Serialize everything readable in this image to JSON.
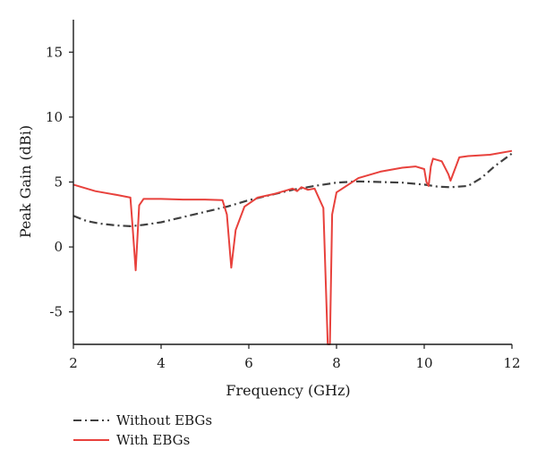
{
  "chart_data": {
    "type": "line",
    "xlabel": "Frequency (GHz)",
    "ylabel": "Peak Gain (dBi)",
    "xlim": [
      2,
      12
    ],
    "ylim": [
      -7.5,
      17.5
    ],
    "xticks": [
      2,
      4,
      6,
      8,
      10,
      12
    ],
    "yticks": [
      -5,
      0,
      5,
      10,
      15
    ],
    "grid": false,
    "legend_position": "bottom-left, below plot",
    "series": [
      {
        "name": "Without EBGs",
        "color": "#404040",
        "style": "dash-dot",
        "x": [
          2,
          2.3,
          2.6,
          3,
          3.3,
          3.6,
          4,
          4.5,
          5,
          5.5,
          6,
          6.5,
          7,
          7.5,
          8,
          8.5,
          9,
          9.5,
          10,
          10.3,
          10.6,
          11,
          11.3,
          11.6,
          12
        ],
        "y": [
          2.4,
          2.0,
          1.8,
          1.65,
          1.6,
          1.7,
          1.9,
          2.3,
          2.7,
          3.1,
          3.6,
          4.0,
          4.4,
          4.7,
          4.95,
          5.05,
          5.0,
          4.95,
          4.8,
          4.65,
          4.6,
          4.7,
          5.3,
          6.2,
          7.2
        ]
      },
      {
        "name": "With EBGs",
        "color": "#e8413c",
        "style": "solid",
        "x": [
          2,
          2.5,
          3,
          3.3,
          3.35,
          3.42,
          3.5,
          3.6,
          4,
          4.5,
          5,
          5.4,
          5.5,
          5.6,
          5.7,
          5.9,
          6.2,
          6.6,
          7,
          7.1,
          7.2,
          7.35,
          7.5,
          7.7,
          7.8,
          7.85,
          7.9,
          8,
          8.5,
          9,
          9.5,
          9.8,
          10,
          10.05,
          10.1,
          10.15,
          10.2,
          10.4,
          10.55,
          10.6,
          10.7,
          10.8,
          11,
          11.5,
          12
        ],
        "y": [
          4.8,
          4.3,
          4.0,
          3.8,
          1.5,
          -1.8,
          3.2,
          3.7,
          3.7,
          3.65,
          3.65,
          3.6,
          2.5,
          -1.6,
          1.3,
          3.1,
          3.8,
          4.1,
          4.5,
          4.3,
          4.6,
          4.4,
          4.5,
          3.0,
          -7.5,
          -7.5,
          2.5,
          4.2,
          5.3,
          5.8,
          6.1,
          6.2,
          6.0,
          5.0,
          4.7,
          6.2,
          6.8,
          6.6,
          5.6,
          5.1,
          6.0,
          6.9,
          7.0,
          7.1,
          7.4
        ]
      }
    ]
  }
}
